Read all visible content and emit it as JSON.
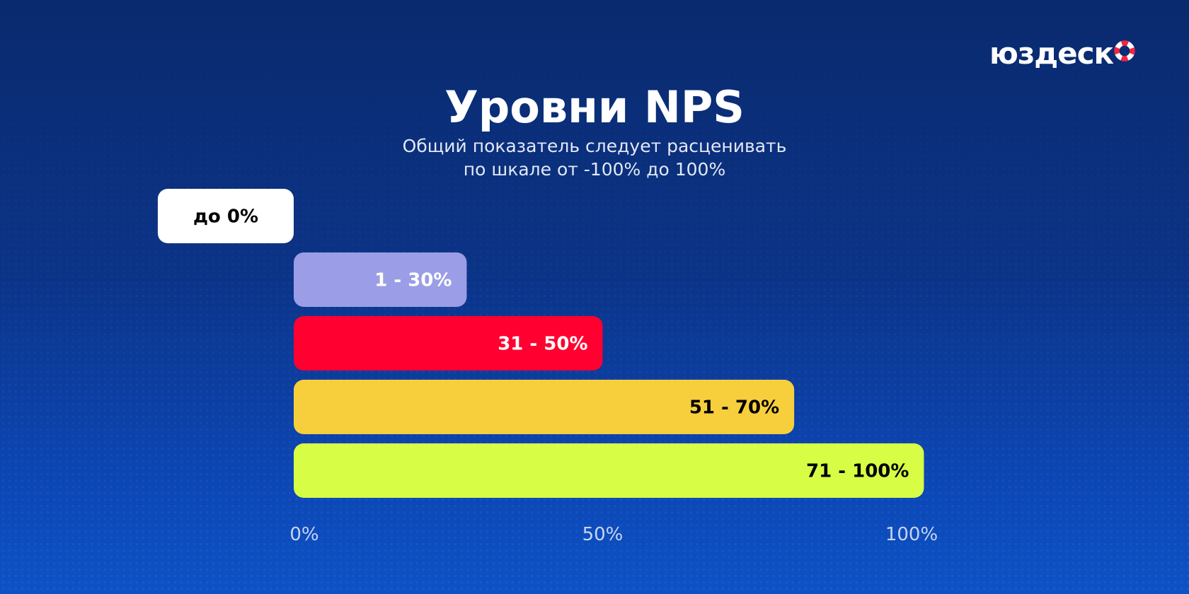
{
  "brand": {
    "name": "юздеск",
    "accent": "#ff1f3d"
  },
  "header": {
    "title": "Уровни NPS",
    "subtitle_line1": "Общий показатель следует расценивать",
    "subtitle_line2": "по шкале от -100% до 100%"
  },
  "chart_data": {
    "type": "bar",
    "orientation": "horizontal",
    "title": "Уровни NPS",
    "xlabel": "",
    "ylabel": "",
    "xlim": [
      0,
      100
    ],
    "x_ticks": [
      "0%",
      "50%",
      "100%"
    ],
    "x_tick_values": [
      0,
      50,
      100
    ],
    "grid": false,
    "legend": "none",
    "bars": [
      {
        "label": "до 0%",
        "start": -22,
        "end": 0,
        "color": "#ffffff",
        "text_color": "#000000"
      },
      {
        "label": "1 - 30%",
        "start": 0,
        "end": 28,
        "color": "#9b9de6",
        "text_color": "#ffffff"
      },
      {
        "label": "31 - 50%",
        "start": 0,
        "end": 50,
        "color": "#ff0030",
        "text_color": "#ffffff"
      },
      {
        "label": "51 - 70%",
        "start": 0,
        "end": 81,
        "color": "#f7cf3d",
        "text_color": "#000000"
      },
      {
        "label": "71 - 100%",
        "start": 0,
        "end": 102,
        "color": "#d7fd45",
        "text_color": "#000000"
      }
    ]
  }
}
